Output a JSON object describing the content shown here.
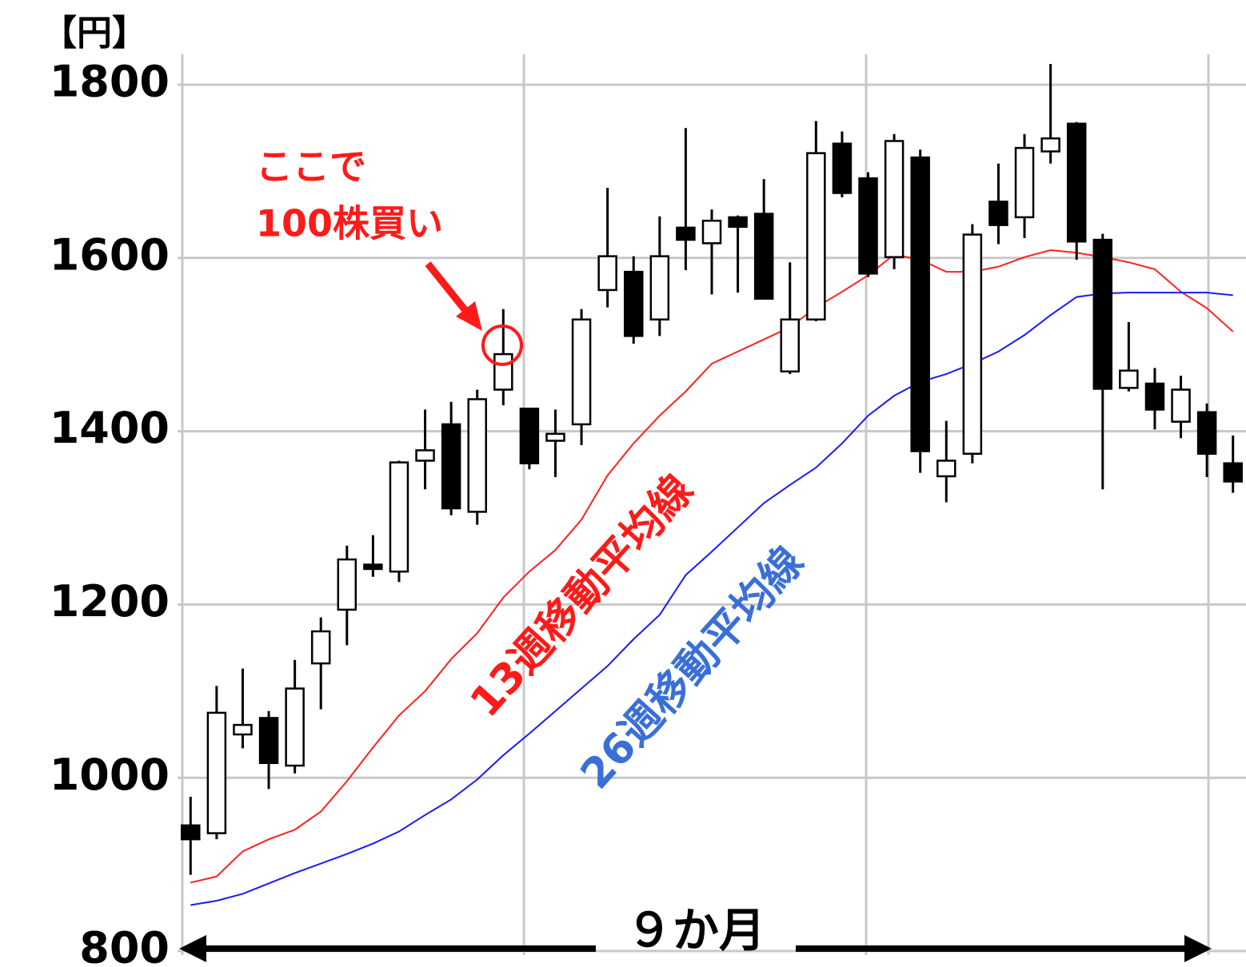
{
  "chart_data": {
    "type": "candlestick",
    "y_unit_label": "【円】",
    "ylim": [
      800,
      1800
    ],
    "yticks": [
      800,
      1000,
      1200,
      1400,
      1600,
      1800
    ],
    "grid": true,
    "categories": [
      null,
      null,
      null,
      null,
      null,
      null,
      null,
      null,
      null,
      null,
      null,
      null,
      null,
      null,
      null,
      null,
      null,
      null,
      null,
      null,
      null,
      null,
      null,
      null,
      null,
      null,
      null,
      null,
      null,
      null,
      null,
      null,
      null,
      null,
      null,
      null,
      null,
      null,
      null,
      null,
      null
    ],
    "open": [
      945,
      936,
      1050,
      1069,
      1014,
      1132,
      1194,
      1246,
      1238,
      1366,
      1408,
      1307,
      1448,
      1426,
      1389,
      1408,
      1563,
      1584,
      1529,
      1635,
      1617,
      1647,
      1651,
      1469,
      1529,
      1732,
      1692,
      1601,
      1716,
      1348,
      1374,
      1665,
      1647,
      1723,
      1755,
      1621,
      1450,
      1455,
      1411,
      1422,
      1363
    ],
    "high": [
      978,
      1106,
      1126,
      1077,
      1136,
      1185,
      1268,
      1280,
      1366,
      1425,
      1434,
      1448,
      1541,
      1426,
      1425,
      1541,
      1681,
      1602,
      1648,
      1750,
      1656,
      1649,
      1691,
      1595,
      1758,
      1746,
      1699,
      1743,
      1725,
      1412,
      1639,
      1709,
      1743,
      1824,
      1757,
      1628,
      1526,
      1473,
      1464,
      1432,
      1395
    ],
    "low": [
      888,
      929,
      1034,
      987,
      1005,
      1079,
      1153,
      1232,
      1226,
      1333,
      1303,
      1292,
      1430,
      1356,
      1347,
      1384,
      1543,
      1501,
      1510,
      1586,
      1558,
      1560,
      1553,
      1466,
      1527,
      1670,
      1578,
      1587,
      1352,
      1318,
      1363,
      1616,
      1623,
      1709,
      1598,
      1333,
      1446,
      1402,
      1392,
      1347,
      1329
    ],
    "close": [
      929,
      1075,
      1061,
      1017,
      1103,
      1169,
      1252,
      1241,
      1364,
      1378,
      1311,
      1437,
      1489,
      1363,
      1397,
      1529,
      1602,
      1510,
      1602,
      1621,
      1643,
      1636,
      1553,
      1529,
      1721,
      1675,
      1582,
      1735,
      1377,
      1366,
      1627,
      1638,
      1727,
      1738,
      1619,
      1449,
      1470,
      1425,
      1448,
      1374,
      1342
    ],
    "up_color": "#ffffff",
    "down_color": "#000000",
    "series": [
      {
        "name": "13週移動平均線",
        "color": "#ff2020",
        "text_color": "#ff1a1a",
        "values": [
          879,
          886,
          915,
          929,
          940,
          961,
          996,
          1035,
          1072,
          1100,
          1137,
          1167,
          1208,
          1238,
          1263,
          1298,
          1349,
          1386,
          1418,
          1446,
          1478,
          1492,
          1506,
          1520,
          1543,
          1561,
          1580,
          1604,
          1598,
          1584,
          1584,
          1590,
          1601,
          1609,
          1606,
          1601,
          1595,
          1587,
          1561,
          1542,
          1515
        ]
      },
      {
        "name": "26週移動平均線",
        "color": "#1a1aff",
        "text_color": "#3a6fd8",
        "values": [
          853,
          858,
          866,
          878,
          890,
          901,
          912,
          924,
          938,
          957,
          975,
          998,
          1026,
          1051,
          1077,
          1103,
          1129,
          1160,
          1188,
          1234,
          1261,
          1289,
          1317,
          1338,
          1358,
          1386,
          1418,
          1441,
          1457,
          1466,
          1478,
          1492,
          1511,
          1534,
          1555,
          1559,
          1560,
          1560,
          1560,
          1560,
          1557
        ]
      }
    ],
    "annotation": [
      "ここで",
      "100株買い"
    ],
    "period_label": "９か月"
  }
}
